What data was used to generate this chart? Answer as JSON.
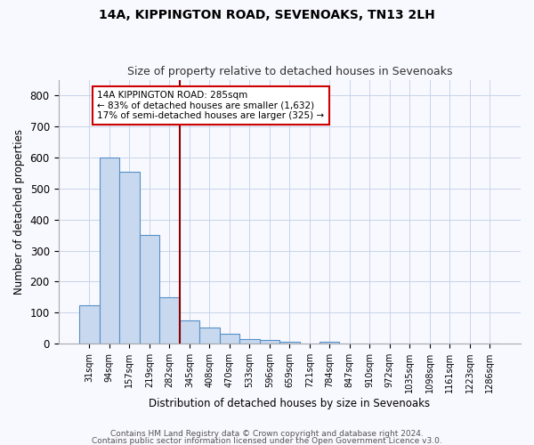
{
  "title": "14A, KIPPINGTON ROAD, SEVENOAKS, TN13 2LH",
  "subtitle": "Size of property relative to detached houses in Sevenoaks",
  "xlabel": "Distribution of detached houses by size in Sevenoaks",
  "ylabel": "Number of detached properties",
  "categories": [
    "31sqm",
    "94sqm",
    "157sqm",
    "219sqm",
    "282sqm",
    "345sqm",
    "408sqm",
    "470sqm",
    "533sqm",
    "596sqm",
    "659sqm",
    "721sqm",
    "784sqm",
    "847sqm",
    "910sqm",
    "972sqm",
    "1035sqm",
    "1098sqm",
    "1161sqm",
    "1223sqm",
    "1286sqm"
  ],
  "values": [
    125,
    600,
    555,
    350,
    150,
    75,
    53,
    32,
    15,
    12,
    5,
    0,
    5,
    0,
    0,
    0,
    0,
    0,
    0,
    0,
    0
  ],
  "bar_color": "#c8d8ee",
  "bar_edge_color": "#5590c8",
  "vline_x_idx": 4,
  "vline_color": "#8b0000",
  "annotation_line1": "14A KIPPINGTON ROAD: 285sqm",
  "annotation_line2": "← 83% of detached houses are smaller (1,632)",
  "annotation_line3": "17% of semi-detached houses are larger (325) →",
  "annotation_box_color": "#ffffff",
  "annotation_box_edge": "#cc0000",
  "ylim": [
    0,
    850
  ],
  "yticks": [
    0,
    100,
    200,
    300,
    400,
    500,
    600,
    700,
    800
  ],
  "footer1": "Contains HM Land Registry data © Crown copyright and database right 2024.",
  "footer2": "Contains public sector information licensed under the Open Government Licence v3.0.",
  "background_color": "#f8f8ff",
  "grid_color": "#c8d4e8",
  "title_fontsize": 10,
  "subtitle_fontsize": 9
}
